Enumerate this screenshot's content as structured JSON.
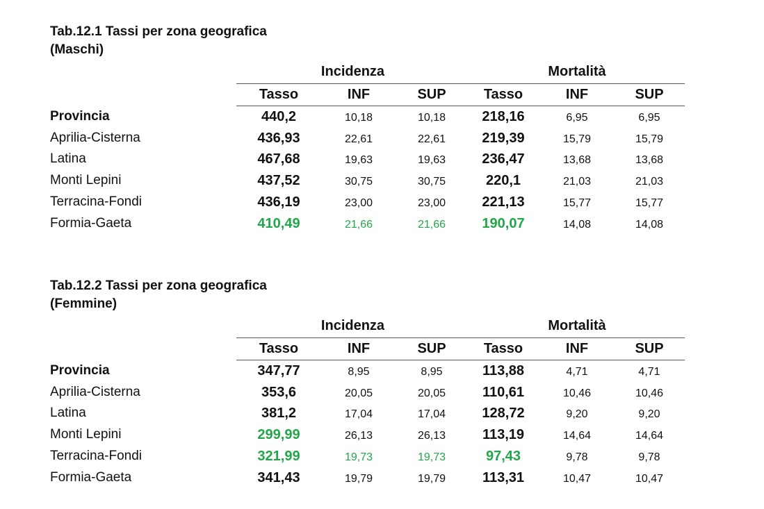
{
  "colors": {
    "highlight": "#22a64a",
    "text": "#111111"
  },
  "tables": [
    {
      "title_line1": "Tab.12.1  Tassi per zona geografica",
      "title_line2": "(Maschi)",
      "group_incidenza": "Incidenza",
      "group_mortalita": "Mortalità",
      "headers": [
        "Tasso",
        "INF",
        "SUP",
        "Tasso",
        "INF",
        "SUP"
      ],
      "rows": [
        {
          "zone": "Provincia",
          "vals": [
            "440,2",
            "10,18",
            "10,18",
            "218,16",
            "6,95",
            "6,95"
          ],
          "green": []
        },
        {
          "zone": "Aprilia-Cisterna",
          "vals": [
            "436,93",
            "22,61",
            "22,61",
            "219,39",
            "15,79",
            "15,79"
          ],
          "green": []
        },
        {
          "zone": "Latina",
          "vals": [
            "467,68",
            "19,63",
            "19,63",
            "236,47",
            "13,68",
            "13,68"
          ],
          "green": []
        },
        {
          "zone": "Monti Lepini",
          "vals": [
            "437,52",
            "30,75",
            "30,75",
            "220,1",
            "21,03",
            "21,03"
          ],
          "green": []
        },
        {
          "zone": "Terracina-Fondi",
          "vals": [
            "436,19",
            "23,00",
            "23,00",
            "221,13",
            "15,77",
            "15,77"
          ],
          "green": []
        },
        {
          "zone": "Formia-Gaeta",
          "vals": [
            "410,49",
            "21,66",
            "21,66",
            "190,07",
            "14,08",
            "14,08"
          ],
          "green": [
            0,
            1,
            2,
            3
          ]
        }
      ]
    },
    {
      "title_line1": "Tab.12.2 Tassi per zona geografica",
      "title_line2": "(Femmine)",
      "group_incidenza": "Incidenza",
      "group_mortalita": "Mortalità",
      "headers": [
        "Tasso",
        "INF",
        "SUP",
        "Tasso",
        "INF",
        "SUP"
      ],
      "rows": [
        {
          "zone": "Provincia",
          "vals": [
            "347,77",
            "8,95",
            "8,95",
            "113,88",
            "4,71",
            "4,71"
          ],
          "green": []
        },
        {
          "zone": "Aprilia-Cisterna",
          "vals": [
            "353,6",
            "20,05",
            "20,05",
            "110,61",
            "10,46",
            "10,46"
          ],
          "green": []
        },
        {
          "zone": "Latina",
          "vals": [
            "381,2",
            "17,04",
            "17,04",
            "128,72",
            "9,20",
            "9,20"
          ],
          "green": []
        },
        {
          "zone": "Monti Lepini",
          "vals": [
            "299,99",
            "26,13",
            "26,13",
            "113,19",
            "14,64",
            "14,64"
          ],
          "green": [
            0
          ]
        },
        {
          "zone": "Terracina-Fondi",
          "vals": [
            "321,99",
            "19,73",
            "19,73",
            "97,43",
            "9,78",
            "9,78"
          ],
          "green": [
            0,
            1,
            2,
            3
          ]
        },
        {
          "zone": "Formia-Gaeta",
          "vals": [
            "341,43",
            "19,79",
            "19,79",
            "113,31",
            "10,47",
            "10,47"
          ],
          "green": []
        }
      ]
    }
  ]
}
